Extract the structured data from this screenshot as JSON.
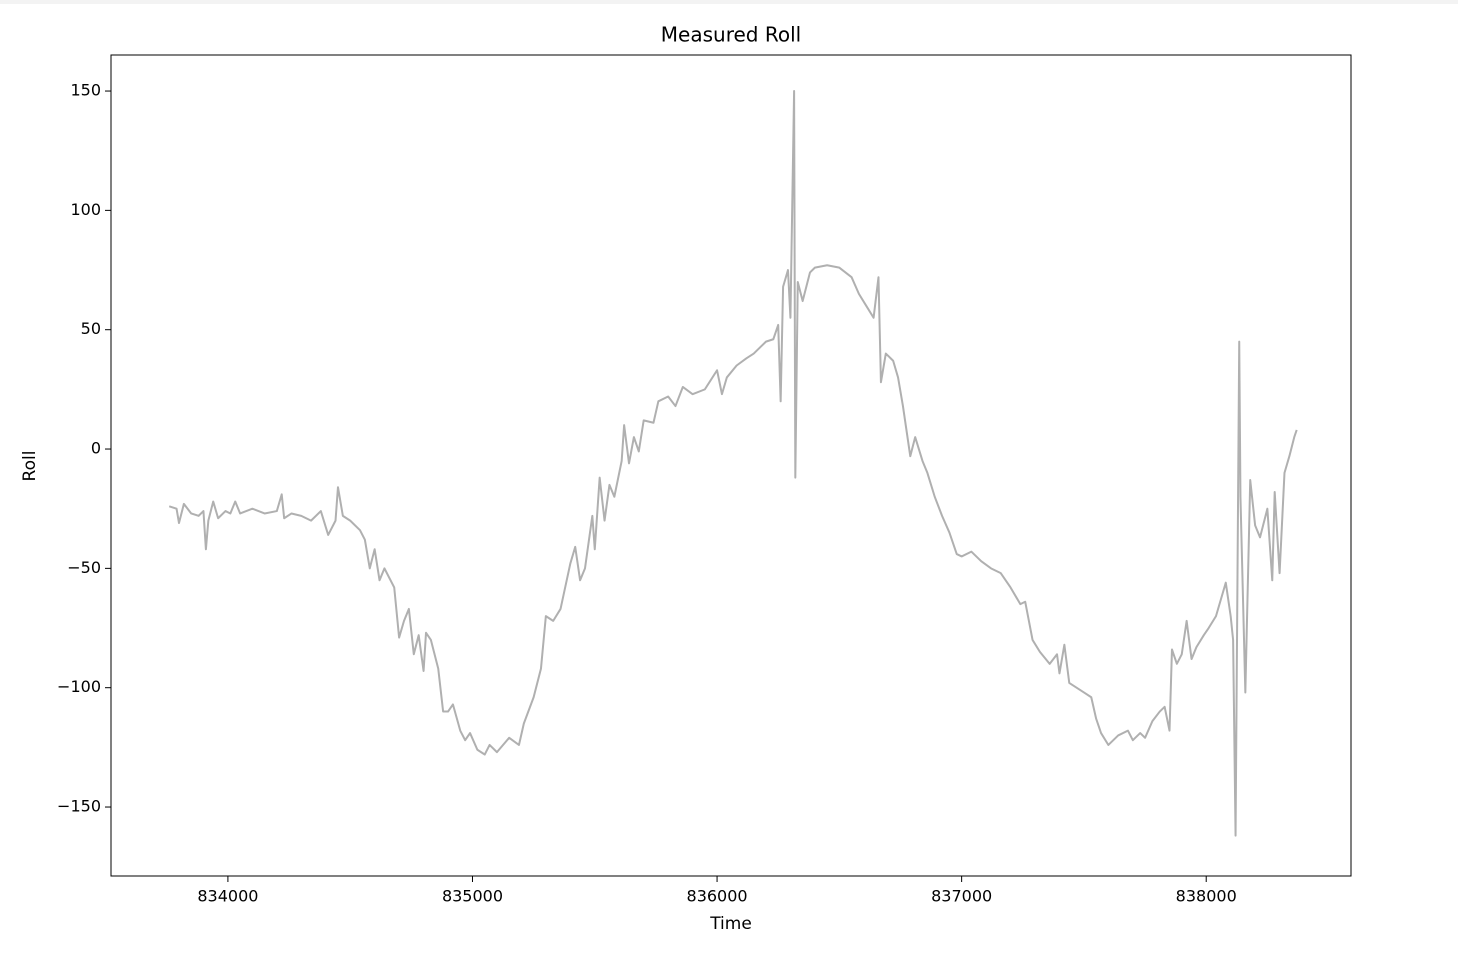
{
  "chart_data": {
    "type": "line",
    "title": "Measured Roll",
    "x_label": "Time",
    "y_label": "Roll",
    "xlim": [
      833522,
      838592
    ],
    "ylim": [
      -178.9,
      165.1
    ],
    "xticks": [
      834000,
      835000,
      836000,
      837000,
      838000
    ],
    "yticks": [
      {
        "value": -150,
        "label": "−150"
      },
      {
        "value": -100,
        "label": "−100"
      },
      {
        "value": -50,
        "label": "−50"
      },
      0,
      50,
      100,
      150
    ],
    "series": [
      {
        "color": "#b0b0b0",
        "x": [
          833760,
          833790,
          833800,
          833820,
          833850,
          833880,
          833900,
          833910,
          833920,
          833940,
          833960,
          833990,
          834010,
          834030,
          834050,
          834100,
          834150,
          834200,
          834220,
          834230,
          834260,
          834300,
          834340,
          834380,
          834410,
          834440,
          834450,
          834470,
          834500,
          834540,
          834560,
          834580,
          834600,
          834620,
          834640,
          834680,
          834700,
          834720,
          834740,
          834760,
          834780,
          834800,
          834810,
          834830,
          834860,
          834880,
          834900,
          834920,
          834950,
          834970,
          834990,
          835020,
          835050,
          835070,
          835100,
          835150,
          835190,
          835210,
          835250,
          835280,
          835300,
          835330,
          835360,
          835400,
          835420,
          835440,
          835460,
          835490,
          835500,
          835520,
          835540,
          835560,
          835580,
          835610,
          835620,
          835640,
          835660,
          835680,
          835700,
          835740,
          835760,
          835800,
          835830,
          835860,
          835900,
          835950,
          836000,
          836020,
          836040,
          836080,
          836120,
          836150,
          836200,
          836230,
          836250,
          836260,
          836270,
          836290,
          836300,
          836315,
          836320,
          836330,
          836350,
          836380,
          836400,
          836450,
          836500,
          836550,
          836580,
          836610,
          836640,
          836660,
          836670,
          836690,
          836720,
          836740,
          836760,
          836790,
          836810,
          836840,
          836860,
          836890,
          836920,
          836950,
          836980,
          837000,
          837040,
          837080,
          837120,
          837160,
          837200,
          837240,
          837260,
          837290,
          837320,
          837360,
          837390,
          837400,
          837420,
          837440,
          837470,
          837500,
          837530,
          837550,
          837570,
          837600,
          837640,
          837680,
          837700,
          837730,
          837750,
          837780,
          837810,
          837830,
          837850,
          837860,
          837880,
          837900,
          837920,
          837940,
          837960,
          837990,
          838010,
          838040,
          838060,
          838080,
          838100,
          838110,
          838120,
          838135,
          838140,
          838160,
          838180,
          838200,
          838220,
          838250,
          838270,
          838280,
          838300,
          838320,
          838340,
          838360,
          838370
        ],
        "values": [
          -24,
          -25,
          -31,
          -23,
          -27,
          -28,
          -26,
          -42,
          -30,
          -22,
          -29,
          -26,
          -27,
          -22,
          -27,
          -25,
          -27,
          -26,
          -19,
          -29,
          -27,
          -28,
          -30,
          -26,
          -36,
          -30,
          -16,
          -28,
          -30,
          -34,
          -38,
          -50,
          -42,
          -55,
          -50,
          -58,
          -79,
          -72,
          -67,
          -86,
          -78,
          -93,
          -77,
          -80,
          -92,
          -110,
          -110,
          -107,
          -118,
          -122,
          -119,
          -126,
          -128,
          -124,
          -127,
          -121,
          -124,
          -115,
          -104,
          -92,
          -70,
          -72,
          -67,
          -48,
          -41,
          -55,
          -50,
          -28,
          -42,
          -12,
          -30,
          -15,
          -20,
          -5,
          10,
          -6,
          5,
          -1,
          12,
          11,
          20,
          22,
          18,
          26,
          23,
          25,
          33,
          23,
          30,
          35,
          38,
          40,
          45,
          46,
          52,
          20,
          68,
          75,
          55,
          150,
          -12,
          70,
          62,
          74,
          76,
          77,
          76,
          72,
          65,
          60,
          55,
          72,
          28,
          40,
          37,
          30,
          18,
          -3,
          5,
          -5,
          -10,
          -20,
          -28,
          -35,
          -44,
          -45,
          -43,
          -47,
          -50,
          -52,
          -58,
          -65,
          -64,
          -80,
          -85,
          -90,
          -86,
          -94,
          -82,
          -98,
          -100,
          -102,
          -104,
          -113,
          -119,
          -124,
          -120,
          -118,
          -122,
          -119,
          -121,
          -114,
          -110,
          -108,
          -118,
          -84,
          -90,
          -86,
          -72,
          -88,
          -83,
          -78,
          -75,
          -70,
          -63,
          -56,
          -70,
          -80,
          -162,
          45,
          -20,
          -102,
          -13,
          -32,
          -37,
          -25,
          -55,
          -18,
          -52,
          -10,
          -3,
          5,
          8
        ]
      }
    ]
  }
}
